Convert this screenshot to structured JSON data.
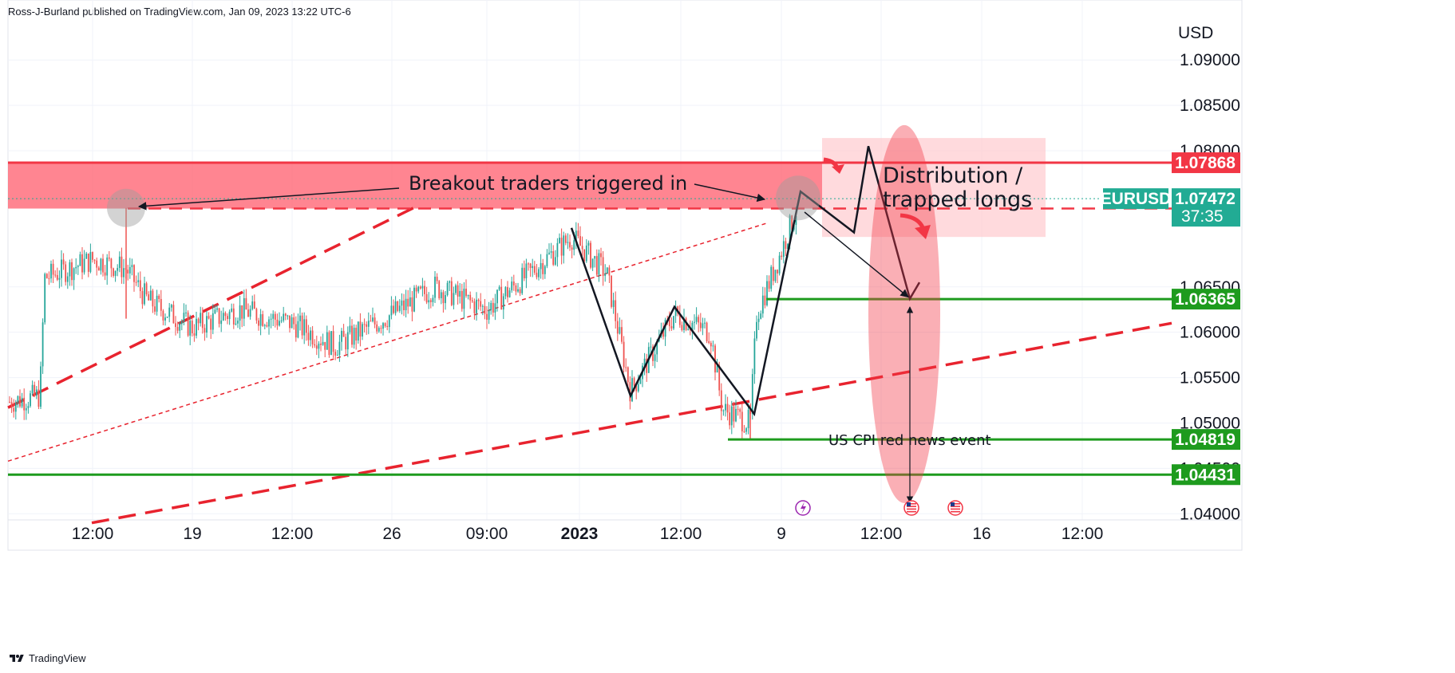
{
  "header": {
    "byline": "Ross-J-Burland published on TradingView.com, Jan 09, 2023 13:22 UTC-6"
  },
  "footer": {
    "brand": "TradingView",
    "logo_icon": "tradingview-logo-icon"
  },
  "colors": {
    "up_candle": "#26a69a",
    "down_candle": "#ef5350",
    "resistance_zone": "#ff5c6c",
    "red_line": "#f23645",
    "green_line": "#1e9b1e",
    "badge_green": "#1e9b1e",
    "badge_red": "#f23645",
    "badge_teal": "#22ab94",
    "ellipse": "#f23645",
    "grid": "#f0f3fa",
    "trendline": "#e8232e"
  },
  "chart_data": {
    "type": "candlestick",
    "symbol": "EURUSD",
    "currency_label": "USD",
    "title": "",
    "ylim": [
      1.0395,
      1.0945
    ],
    "y_ticks": [
      "1.09000",
      "1.08500",
      "1.08000",
      "1.06500",
      "1.06000",
      "1.05500",
      "1.05000",
      "1.04500",
      "1.04000"
    ],
    "x_ticks": [
      "12:00",
      "19",
      "12:00",
      "26",
      "09:00",
      "2023",
      "12:00",
      "9",
      "12:00",
      "16",
      "12:00"
    ],
    "price_levels": [
      {
        "value": 1.07868,
        "label": "1.07868",
        "color": "red"
      },
      {
        "value": 1.07363,
        "label": "1.07363",
        "color": "red"
      },
      {
        "value": 1.06365,
        "label": "1.06365",
        "color": "green"
      },
      {
        "value": 1.04819,
        "label": "1.04819",
        "color": "green"
      },
      {
        "value": 1.04431,
        "label": "1.04431",
        "color": "green"
      }
    ],
    "current_price": {
      "symbol": "EURUSD",
      "label": "1.07472",
      "value": 1.07472,
      "countdown": "37:35"
    },
    "annotations": {
      "breakout": "Breakout traders triggered in",
      "distribution_line1": "Distribution /",
      "distribution_line2": "trapped longs",
      "cpi": "US CPI red news  event"
    },
    "event_icons": [
      "lightning-icon",
      "us-flag-icon",
      "us-flag-icon"
    ],
    "grid": true,
    "series": [
      {
        "x": [
          "Dec 14 12:00",
          "Dec 15 12:00",
          "Dec 16 12:00",
          "Dec 19",
          "Dec 20 12:00",
          "Dec 21 12:00",
          "Dec 22 12:00",
          "Dec 26",
          "Dec 27 12:00",
          "Dec 28 12:00",
          "Dec 29 12:00",
          "Dec 30",
          "2023",
          "Jan 3",
          "Jan 4 12:00",
          "Jan 5",
          "Jan 6",
          "Jan 9",
          "Jan 9 13:00"
        ],
        "values": [
          1.0525,
          1.0675,
          1.069,
          1.06,
          1.0625,
          1.062,
          1.058,
          1.0615,
          1.0645,
          1.0635,
          1.0625,
          1.069,
          1.0675,
          1.053,
          1.062,
          1.0555,
          1.05,
          1.069,
          1.0747
        ]
      }
    ]
  }
}
